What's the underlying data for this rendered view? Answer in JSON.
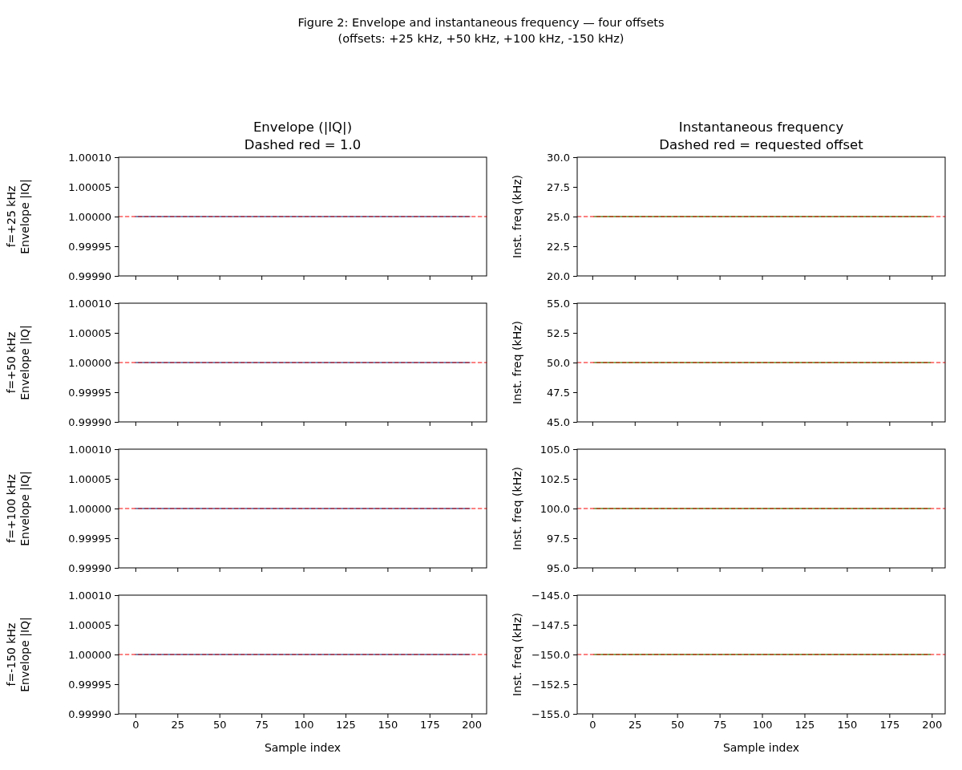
{
  "chart_data": [
    {
      "type": "line",
      "title": "Envelope (|IQ|)\nDashed red = 1.0",
      "annotations": [
        "Figure 2: Envelope and instantaneous frequency — four offsets\n(offsets: +25 kHz, +50 kHz, +100 kHz, -150 kHz)"
      ],
      "ylabel": "f=+25 kHz\nEnvelope |IQ|",
      "series": [
        {
          "color": "#1f77b4",
          "x": [
            0,
            199
          ],
          "values": [
            1.0,
            1.0
          ]
        }
      ],
      "xlim": [
        -9.95,
        208.95
      ],
      "xticks": [
        0,
        25,
        50,
        75,
        100,
        125,
        150,
        175,
        200
      ],
      "ylim": [
        0.9999,
        1.0001
      ],
      "yticks": [
        {
          "value": 0.9999,
          "label": "0.99990"
        },
        {
          "value": 0.99995,
          "label": "0.99995"
        },
        {
          "value": 1.0,
          "label": "1.00000"
        },
        {
          "value": 1.00005,
          "label": "1.00005"
        },
        {
          "value": 1.0001,
          "label": "1.00010"
        }
      ],
      "ref_lines": [
        {
          "axis": "y",
          "value": 1.0,
          "color": "#ff0000",
          "line_style": "dashed"
        }
      ],
      "tick_labels": "y"
    },
    {
      "type": "line",
      "title": "Instantaneous frequency\nDashed red = requested offset",
      "ylabel": "Inst. freq (kHz)",
      "series": [
        {
          "color": "#2ca02c",
          "x": [
            1,
            199
          ],
          "values": [
            25.0,
            25.0
          ]
        }
      ],
      "xlim": [
        -8.9,
        207.9
      ],
      "xticks": [
        0,
        25,
        50,
        75,
        100,
        125,
        150,
        175,
        200
      ],
      "ylim": [
        20,
        30
      ],
      "yticks": [
        {
          "value": 20,
          "label": "20.0"
        },
        22.5,
        {
          "value": 25,
          "label": "25.0"
        },
        27.5,
        {
          "value": 30,
          "label": "30.0"
        }
      ],
      "ref_lines": [
        {
          "axis": "y",
          "value": 25.0,
          "color": "#ff0000",
          "line_style": "dashed"
        }
      ],
      "tick_labels": "y"
    },
    {
      "type": "line",
      "ylabel": "f=+50 kHz\nEnvelope |IQ|",
      "series": [
        {
          "color": "#1f77b4",
          "x": [
            0,
            199
          ],
          "values": [
            1.0,
            1.0
          ]
        }
      ],
      "xlim": [
        -9.95,
        208.95
      ],
      "xticks": [
        0,
        25,
        50,
        75,
        100,
        125,
        150,
        175,
        200
      ],
      "ylim": [
        0.9999,
        1.0001
      ],
      "yticks": [
        {
          "value": 0.9999,
          "label": "0.99990"
        },
        {
          "value": 0.99995,
          "label": "0.99995"
        },
        {
          "value": 1.0,
          "label": "1.00000"
        },
        {
          "value": 1.00005,
          "label": "1.00005"
        },
        {
          "value": 1.0001,
          "label": "1.00010"
        }
      ],
      "ref_lines": [
        {
          "axis": "y",
          "value": 1.0,
          "color": "#ff0000",
          "line_style": "dashed"
        }
      ],
      "tick_labels": "y"
    },
    {
      "type": "line",
      "ylabel": "Inst. freq (kHz)",
      "series": [
        {
          "color": "#2ca02c",
          "x": [
            1,
            199
          ],
          "values": [
            50.0,
            50.0
          ]
        }
      ],
      "xlim": [
        -8.9,
        207.9
      ],
      "xticks": [
        0,
        25,
        50,
        75,
        100,
        125,
        150,
        175,
        200
      ],
      "ylim": [
        45,
        55
      ],
      "yticks": [
        {
          "value": 45,
          "label": "45.0"
        },
        47.5,
        {
          "value": 50,
          "label": "50.0"
        },
        52.5,
        {
          "value": 55,
          "label": "55.0"
        }
      ],
      "ref_lines": [
        {
          "axis": "y",
          "value": 50.0,
          "color": "#ff0000",
          "line_style": "dashed"
        }
      ],
      "tick_labels": "y"
    },
    {
      "type": "line",
      "ylabel": "f=+100 kHz\nEnvelope |IQ|",
      "series": [
        {
          "color": "#1f77b4",
          "x": [
            0,
            199
          ],
          "values": [
            1.0,
            1.0
          ]
        }
      ],
      "xlim": [
        -9.95,
        208.95
      ],
      "xticks": [
        0,
        25,
        50,
        75,
        100,
        125,
        150,
        175,
        200
      ],
      "ylim": [
        0.9999,
        1.0001
      ],
      "yticks": [
        {
          "value": 0.9999,
          "label": "0.99990"
        },
        {
          "value": 0.99995,
          "label": "0.99995"
        },
        {
          "value": 1.0,
          "label": "1.00000"
        },
        {
          "value": 1.00005,
          "label": "1.00005"
        },
        {
          "value": 1.0001,
          "label": "1.00010"
        }
      ],
      "ref_lines": [
        {
          "axis": "y",
          "value": 1.0,
          "color": "#ff0000",
          "line_style": "dashed"
        }
      ],
      "tick_labels": "y"
    },
    {
      "type": "line",
      "ylabel": "Inst. freq (kHz)",
      "series": [
        {
          "color": "#2ca02c",
          "x": [
            1,
            199
          ],
          "values": [
            100.0,
            100.0
          ]
        }
      ],
      "xlim": [
        -8.9,
        207.9
      ],
      "xticks": [
        0,
        25,
        50,
        75,
        100,
        125,
        150,
        175,
        200
      ],
      "ylim": [
        95,
        105
      ],
      "yticks": [
        {
          "value": 95,
          "label": "95.0"
        },
        97.5,
        {
          "value": 100,
          "label": "100.0"
        },
        102.5,
        {
          "value": 105,
          "label": "105.0"
        }
      ],
      "ref_lines": [
        {
          "axis": "y",
          "value": 100.0,
          "color": "#ff0000",
          "line_style": "dashed"
        }
      ],
      "tick_labels": "y"
    },
    {
      "type": "line",
      "xlabel": "Sample index",
      "ylabel": "f=-150 kHz\nEnvelope |IQ|",
      "series": [
        {
          "color": "#1f77b4",
          "x": [
            0,
            199
          ],
          "values": [
            1.0,
            1.0
          ]
        }
      ],
      "xlim": [
        -9.95,
        208.95
      ],
      "xticks": [
        0,
        25,
        50,
        75,
        100,
        125,
        150,
        175,
        200
      ],
      "ylim": [
        0.9999,
        1.0001
      ],
      "yticks": [
        {
          "value": 0.9999,
          "label": "0.99990"
        },
        {
          "value": 0.99995,
          "label": "0.99995"
        },
        {
          "value": 1.0,
          "label": "1.00000"
        },
        {
          "value": 1.00005,
          "label": "1.00005"
        },
        {
          "value": 1.0001,
          "label": "1.00010"
        }
      ],
      "ref_lines": [
        {
          "axis": "y",
          "value": 1.0,
          "color": "#ff0000",
          "line_style": "dashed"
        }
      ]
    },
    {
      "type": "line",
      "xlabel": "Sample index",
      "ylabel": "Inst. freq (kHz)",
      "series": [
        {
          "color": "#2ca02c",
          "x": [
            1,
            199
          ],
          "values": [
            -150.0,
            -150.0
          ]
        }
      ],
      "xlim": [
        -8.9,
        207.9
      ],
      "xticks": [
        0,
        25,
        50,
        75,
        100,
        125,
        150,
        175,
        200
      ],
      "ylim": [
        -155,
        -145
      ],
      "yticks": [
        {
          "value": -155,
          "label": "−155.0"
        },
        {
          "value": -152.5,
          "label": "−152.5"
        },
        {
          "value": -150,
          "label": "−150.0"
        },
        {
          "value": -147.5,
          "label": "−147.5"
        },
        {
          "value": -145,
          "label": "−145.0"
        }
      ],
      "ref_lines": [
        {
          "axis": "y",
          "value": -150.0,
          "color": "#ff0000",
          "line_style": "dashed"
        }
      ]
    }
  ]
}
